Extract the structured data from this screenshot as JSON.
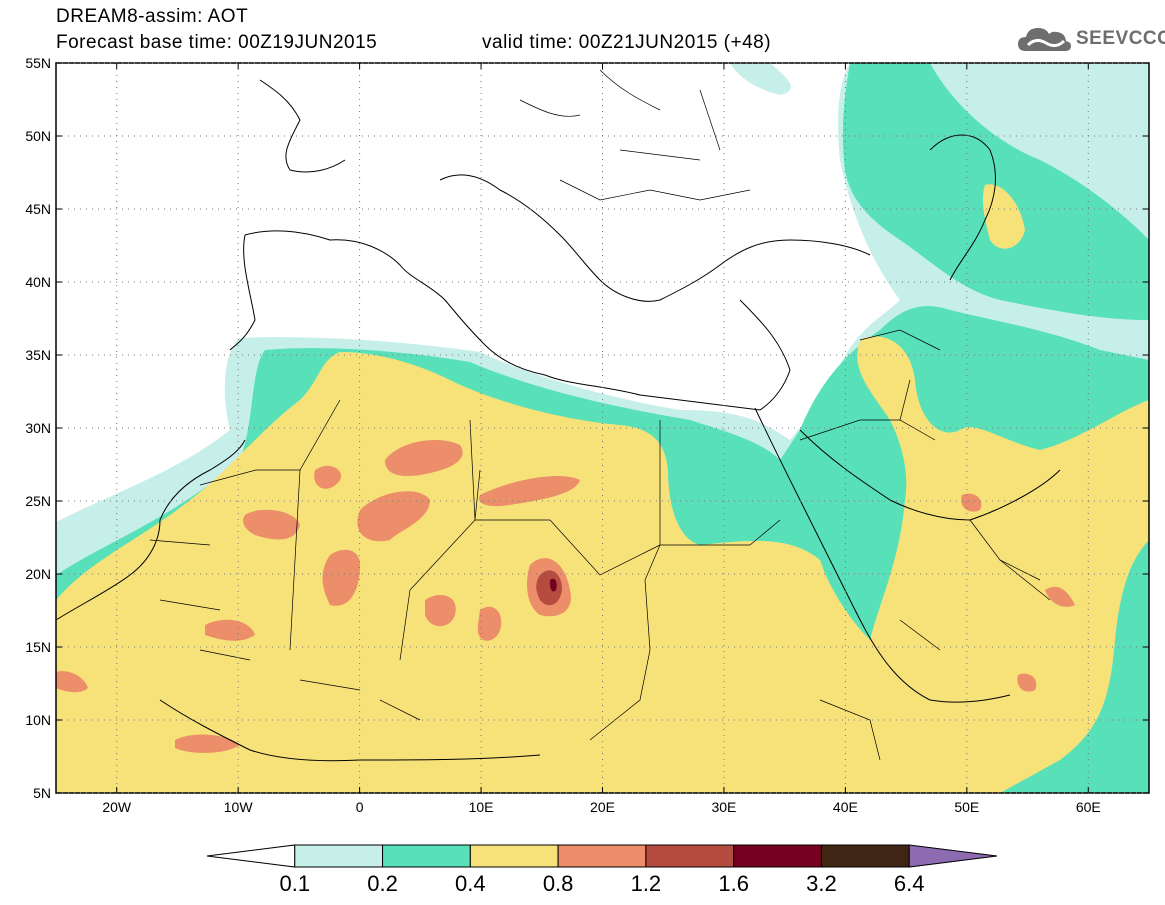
{
  "header": {
    "line1": "DREAM8-assim: AOT",
    "line2_left": "Forecast base time: 00Z19JUN2015",
    "line2_right": "valid time: 00Z21JUN2015 (+48)"
  },
  "logo": {
    "text": "SEEVCCC",
    "icon": "cloud-icon",
    "color": "#6e6e6e"
  },
  "map": {
    "lon_range": [
      -25,
      65
    ],
    "lat_range": [
      5,
      55
    ],
    "lat_ticks": [
      {
        "value": 5,
        "label": "5N"
      },
      {
        "value": 10,
        "label": "10N"
      },
      {
        "value": 15,
        "label": "15N"
      },
      {
        "value": 20,
        "label": "20N"
      },
      {
        "value": 25,
        "label": "25N"
      },
      {
        "value": 30,
        "label": "30N"
      },
      {
        "value": 35,
        "label": "35N"
      },
      {
        "value": 40,
        "label": "40N"
      },
      {
        "value": 45,
        "label": "45N"
      },
      {
        "value": 50,
        "label": "50N"
      },
      {
        "value": 55,
        "label": "55N"
      }
    ],
    "lon_ticks": [
      {
        "value": -20,
        "label": "20W"
      },
      {
        "value": -10,
        "label": "10W"
      },
      {
        "value": 0,
        "label": "0"
      },
      {
        "value": 10,
        "label": "10E"
      },
      {
        "value": 20,
        "label": "20E"
      },
      {
        "value": 30,
        "label": "30E"
      },
      {
        "value": 40,
        "label": "40E"
      },
      {
        "value": 50,
        "label": "50E"
      },
      {
        "value": 60,
        "label": "60E"
      }
    ],
    "grid": "dotted"
  },
  "legend": {
    "labels": [
      "0.1",
      "0.2",
      "0.4",
      "0.8",
      "1.2",
      "1.6",
      "3.2",
      "6.4"
    ],
    "colors": [
      "#ffffff",
      "#c6efea",
      "#58e1b9",
      "#f7e27a",
      "#ec8e69",
      "#b64c3f",
      "#760020",
      "#3f2514",
      "#8e6bb0"
    ]
  }
}
